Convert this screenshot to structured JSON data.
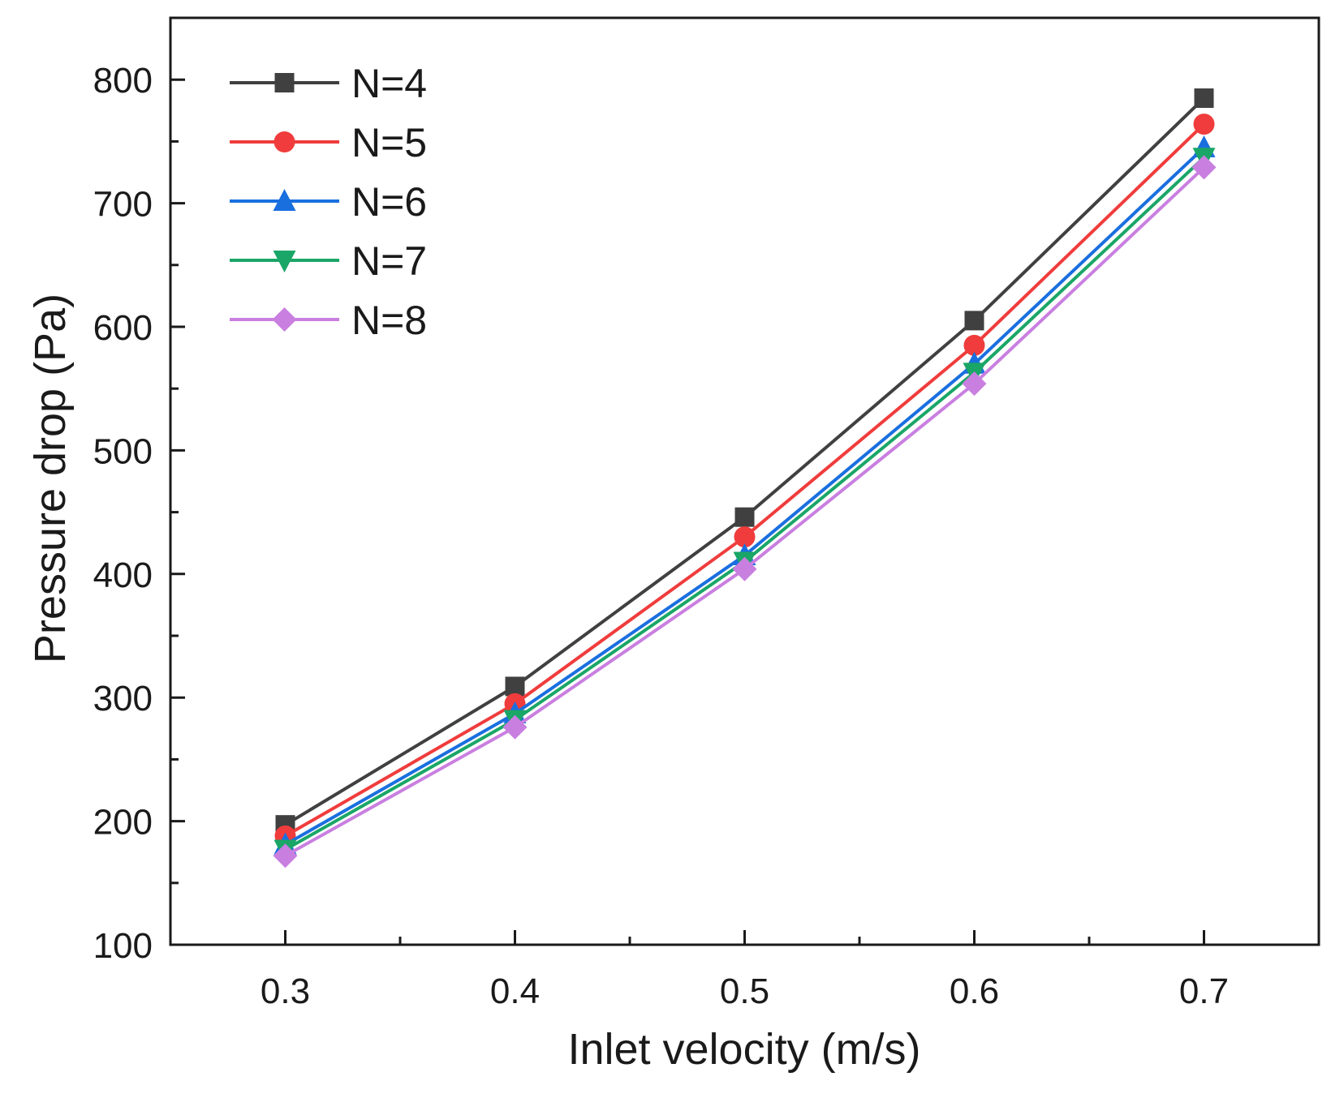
{
  "chart_data": {
    "type": "line",
    "title": "",
    "xlabel": "Inlet velocity (m/s)",
    "ylabel": "Pressure drop (Pa)",
    "xlim": [
      0.25,
      0.75
    ],
    "ylim": [
      100,
      850
    ],
    "x": [
      0.3,
      0.4,
      0.5,
      0.6,
      0.7
    ],
    "x_major_ticks": [
      0.3,
      0.4,
      0.5,
      0.6,
      0.7
    ],
    "x_tick_labels": [
      "0.3",
      "0.4",
      "0.5",
      "0.6",
      "0.7"
    ],
    "x_minor_ticks": [
      0.35,
      0.45,
      0.55,
      0.65
    ],
    "y_major_ticks": [
      100,
      200,
      300,
      400,
      500,
      600,
      700,
      800
    ],
    "y_tick_labels": [
      "100",
      "200",
      "300",
      "400",
      "500",
      "600",
      "700",
      "800"
    ],
    "y_minor_ticks": [
      150,
      250,
      350,
      450,
      550,
      650,
      750
    ],
    "grid": false,
    "legend_position": "top-left",
    "series": [
      {
        "name": "N=4",
        "color": "#404040",
        "marker": "square",
        "values": [
          197,
          309,
          446,
          605,
          785
        ]
      },
      {
        "name": "N=5",
        "color": "#f03c3c",
        "marker": "circle",
        "values": [
          188,
          295,
          430,
          585,
          764
        ]
      },
      {
        "name": "N=6",
        "color": "#1a6fdf",
        "marker": "triangle-up",
        "values": [
          181,
          287,
          415,
          570,
          745
        ]
      },
      {
        "name": "N=7",
        "color": "#1aa667",
        "marker": "triangle-down",
        "values": [
          177,
          282,
          410,
          563,
          737
        ]
      },
      {
        "name": "N=8",
        "color": "#c97fe0",
        "marker": "diamond",
        "values": [
          172,
          276,
          404,
          554,
          729
        ]
      }
    ]
  }
}
